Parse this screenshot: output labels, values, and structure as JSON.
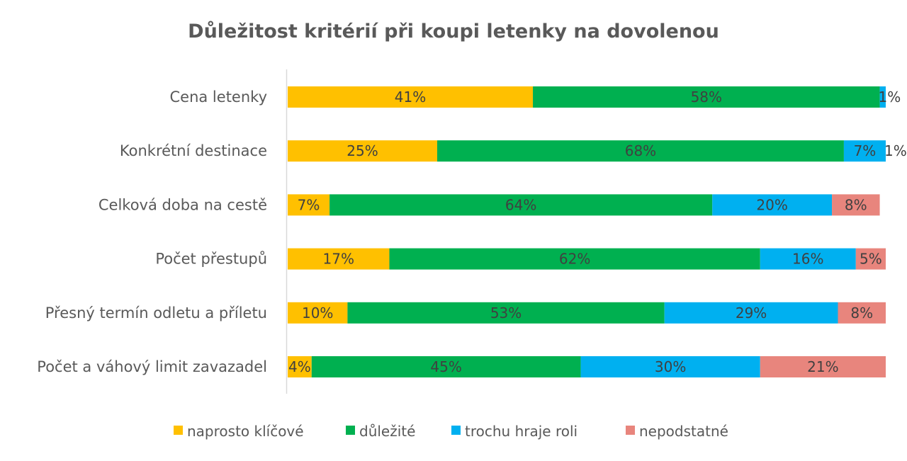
{
  "chart_data": {
    "type": "bar",
    "orientation": "horizontal",
    "stacked": "percent",
    "title": "Důležitost kritérií při koupi letenky na dovolenou",
    "xlabel": "",
    "ylabel": "",
    "xlim": [
      0,
      100
    ],
    "grid": false,
    "legend_position": "bottom",
    "categories": [
      "Cena letenky",
      "Konkrétní destinace",
      "Celková doba na cestě",
      "Počet přestupů",
      "Přesný termín odletu a příletu",
      "Počet a váhový limit zavazadel"
    ],
    "series": [
      {
        "name": "naprosto klíčové",
        "color": "#FFC000",
        "values": [
          41,
          25,
          7,
          17,
          10,
          4
        ]
      },
      {
        "name": "důležité",
        "color": "#00B050",
        "values": [
          58,
          68,
          64,
          62,
          53,
          45
        ]
      },
      {
        "name": "trochu hraje roli",
        "color": "#00B0F0",
        "values": [
          1,
          7,
          20,
          16,
          29,
          30
        ]
      },
      {
        "name": "nepodstatné",
        "color": "#E8857D",
        "values": [
          0,
          1,
          8,
          5,
          8,
          21
        ]
      }
    ],
    "value_suffix": "%"
  }
}
